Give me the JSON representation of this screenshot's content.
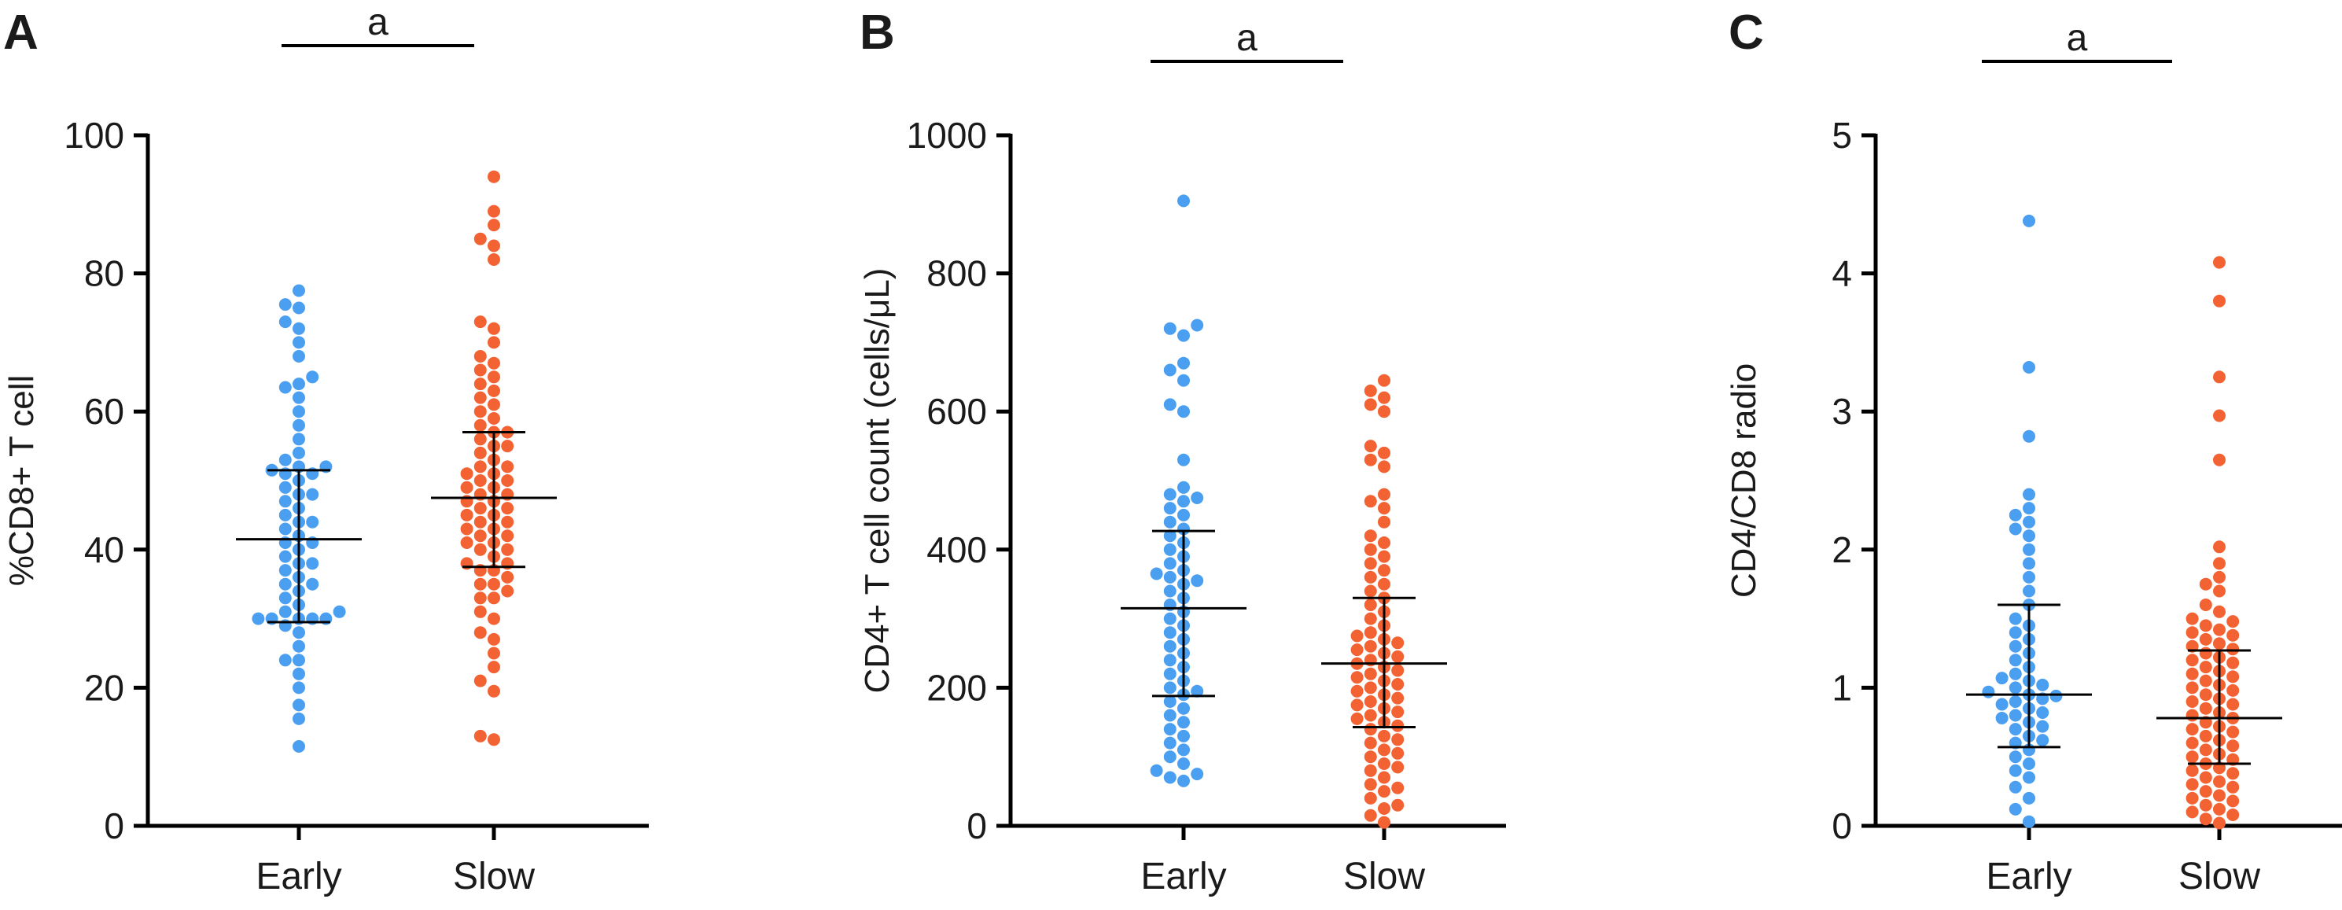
{
  "colors": {
    "Early": "#4a9ff0",
    "Slow": "#f26233",
    "axis": "#000000"
  },
  "chart_data": [
    {
      "type": "scatter",
      "panel": "A",
      "ylabel": "%CD8+ T cell",
      "ylim": [
        0,
        100
      ],
      "yticks": [
        "0",
        "20",
        "40",
        "60",
        "80",
        "100"
      ],
      "categories": [
        "Early",
        "Slow"
      ],
      "significance": "a",
      "series": [
        {
          "name": "Early",
          "mean": 41.5,
          "sd_low": 29.5,
          "sd_high": 51.5,
          "values": [
            11.5,
            15.5,
            17.5,
            20,
            22,
            24,
            24,
            26,
            28,
            29,
            30,
            30,
            30,
            30,
            30,
            31,
            31,
            32,
            33,
            34,
            35,
            35,
            36,
            37,
            38,
            38,
            39,
            40,
            41,
            41,
            42,
            43,
            44,
            44,
            45,
            46,
            47,
            48,
            48,
            49,
            50,
            51,
            51,
            51.5,
            52,
            52,
            53,
            54,
            56,
            58,
            60,
            62,
            63.5,
            64,
            65,
            68,
            70,
            72,
            73,
            75,
            75.5,
            77.5
          ]
        },
        {
          "name": "Slow",
          "mean": 47.5,
          "sd_low": 37.5,
          "sd_high": 57,
          "values": [
            12.5,
            13,
            19.5,
            21,
            23,
            25,
            27,
            28,
            30,
            31,
            33,
            33,
            34,
            35,
            35,
            36,
            37,
            37,
            38,
            38,
            39,
            40,
            40,
            41,
            41,
            42,
            42,
            43,
            43,
            44,
            44,
            45,
            45,
            46,
            46,
            47,
            47,
            48,
            48,
            49,
            49,
            50,
            50,
            51,
            51,
            52,
            52,
            53,
            54,
            55,
            55,
            56,
            57,
            57,
            58,
            59,
            60,
            61,
            62,
            63,
            64,
            65,
            66,
            67,
            68,
            70,
            72,
            73,
            82,
            84,
            85,
            87,
            89,
            94
          ]
        }
      ]
    },
    {
      "type": "scatter",
      "panel": "B",
      "ylabel": "CD4+ T cell count (cells/μL)",
      "ylim": [
        0,
        1000
      ],
      "yticks": [
        "0",
        "200",
        "400",
        "600",
        "800",
        "1000"
      ],
      "categories": [
        "Early",
        "Slow"
      ],
      "significance": "a",
      "series": [
        {
          "name": "Early",
          "mean": 315,
          "sd_low": 188,
          "sd_high": 427,
          "values": [
            65,
            70,
            75,
            80,
            90,
            100,
            110,
            120,
            130,
            140,
            150,
            160,
            170,
            180,
            190,
            195,
            200,
            210,
            220,
            230,
            240,
            250,
            260,
            270,
            280,
            290,
            300,
            310,
            320,
            330,
            340,
            350,
            355,
            360,
            365,
            370,
            380,
            390,
            400,
            410,
            420,
            430,
            440,
            450,
            460,
            470,
            475,
            480,
            490,
            530,
            600,
            610,
            645,
            660,
            670,
            710,
            720,
            725,
            905
          ]
        },
        {
          "name": "Slow",
          "mean": 235,
          "sd_low": 143,
          "sd_high": 330,
          "values": [
            5,
            15,
            25,
            30,
            40,
            50,
            55,
            60,
            70,
            80,
            85,
            90,
            100,
            105,
            110,
            120,
            125,
            130,
            140,
            145,
            150,
            155,
            160,
            165,
            170,
            175,
            180,
            185,
            190,
            195,
            200,
            205,
            210,
            215,
            220,
            225,
            230,
            235,
            240,
            245,
            250,
            255,
            260,
            265,
            270,
            275,
            280,
            290,
            300,
            310,
            320,
            330,
            340,
            350,
            360,
            370,
            380,
            390,
            400,
            410,
            420,
            440,
            460,
            470,
            480,
            520,
            530,
            540,
            550,
            600,
            610,
            620,
            630,
            645
          ]
        }
      ]
    },
    {
      "type": "scatter",
      "panel": "C",
      "ylabel": "CD4/CD8 radio",
      "ylim": [
        0,
        5
      ],
      "yticks": [
        "0",
        "1",
        "2",
        "3",
        "4",
        "5"
      ],
      "categories": [
        "Early",
        "Slow"
      ],
      "significance": "a",
      "series": [
        {
          "name": "Early",
          "mean": 0.95,
          "sd_low": 0.57,
          "sd_high": 1.6,
          "values": [
            0.03,
            0.12,
            0.2,
            0.28,
            0.35,
            0.4,
            0.45,
            0.5,
            0.55,
            0.6,
            0.62,
            0.65,
            0.7,
            0.72,
            0.75,
            0.78,
            0.8,
            0.82,
            0.85,
            0.88,
            0.9,
            0.92,
            0.94,
            0.95,
            0.97,
            1.0,
            1.02,
            1.05,
            1.07,
            1.1,
            1.15,
            1.2,
            1.25,
            1.3,
            1.35,
            1.4,
            1.45,
            1.5,
            1.6,
            1.7,
            1.8,
            1.9,
            2.0,
            2.1,
            2.15,
            2.2,
            2.25,
            2.3,
            2.4,
            2.82,
            3.32,
            4.38
          ]
        },
        {
          "name": "Slow",
          "mean": 0.78,
          "sd_low": 0.45,
          "sd_high": 1.27,
          "values": [
            0.02,
            0.05,
            0.08,
            0.1,
            0.12,
            0.15,
            0.18,
            0.2,
            0.22,
            0.25,
            0.28,
            0.3,
            0.32,
            0.35,
            0.38,
            0.4,
            0.42,
            0.45,
            0.48,
            0.5,
            0.52,
            0.55,
            0.58,
            0.6,
            0.62,
            0.65,
            0.68,
            0.7,
            0.72,
            0.75,
            0.78,
            0.8,
            0.82,
            0.85,
            0.88,
            0.9,
            0.92,
            0.95,
            0.98,
            1.0,
            1.02,
            1.05,
            1.08,
            1.1,
            1.12,
            1.15,
            1.18,
            1.2,
            1.22,
            1.25,
            1.28,
            1.3,
            1.32,
            1.35,
            1.38,
            1.4,
            1.42,
            1.45,
            1.48,
            1.5,
            1.55,
            1.6,
            1.7,
            1.75,
            1.8,
            1.9,
            2.02,
            2.65,
            2.97,
            3.25,
            3.8,
            4.08
          ]
        }
      ]
    }
  ]
}
